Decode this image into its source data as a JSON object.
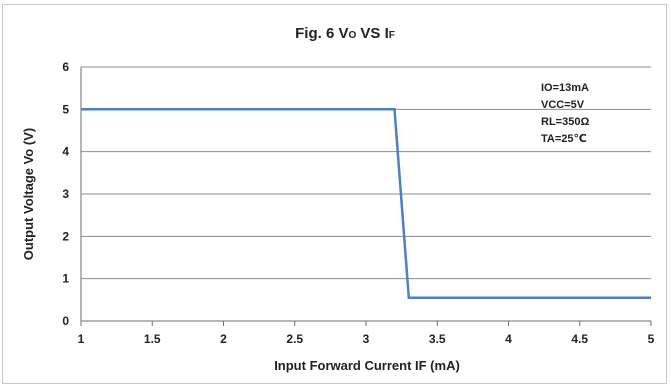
{
  "chart_data": {
    "type": "line",
    "title": "Fig. 6 Vo VS IF",
    "title_parts": {
      "prefix": "Fig. 6 V",
      "sub1": "O",
      "mid": " VS I",
      "sub2": "F"
    },
    "xlabel": "Input Forward Current IF (mA)",
    "ylabel": "Output Voltage Vo (V)",
    "xlim": [
      1,
      5
    ],
    "ylim": [
      0,
      6
    ],
    "x_ticks": [
      "1",
      "1.5",
      "2",
      "2.5",
      "3",
      "3.5",
      "4",
      "4.5",
      "5"
    ],
    "y_ticks": [
      "0",
      "1",
      "2",
      "3",
      "4",
      "5",
      "6"
    ],
    "grid": true,
    "annotation": [
      "IO=13mA",
      "VCC=5V",
      "RL=350Ω",
      "TA=25℃"
    ],
    "series": [
      {
        "color": "#4f81bd",
        "x": [
          1,
          3.2,
          3.3,
          5
        ],
        "y": [
          5,
          5,
          0.55,
          0.55
        ]
      }
    ]
  }
}
